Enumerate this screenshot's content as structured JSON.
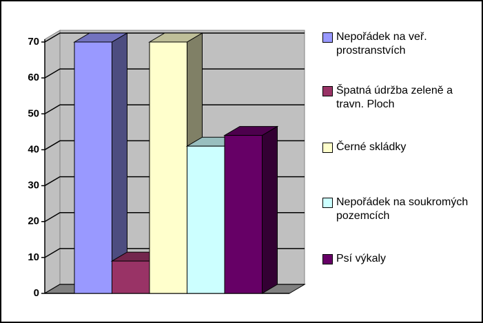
{
  "chart_data": {
    "type": "bar",
    "series": [
      {
        "name": "Nepořádek na veř. prostranstvích",
        "color": "#9999ff",
        "values": [
          70
        ]
      },
      {
        "name": "Špatná údržba zeleně a travn. Ploch",
        "color": "#993366",
        "values": [
          9
        ]
      },
      {
        "name": "Černé skládky",
        "color": "#ffffcc",
        "values": [
          70
        ]
      },
      {
        "name": "Nepořádek na soukromých pozemcích",
        "color": "#ccffff",
        "values": [
          41
        ]
      },
      {
        "name": "Psí výkaly",
        "color": "#660066",
        "values": [
          44
        ]
      }
    ],
    "ylim": [
      0,
      70
    ],
    "yticks": [
      0,
      10,
      20,
      30,
      40,
      50,
      60,
      70
    ],
    "grid": true
  }
}
